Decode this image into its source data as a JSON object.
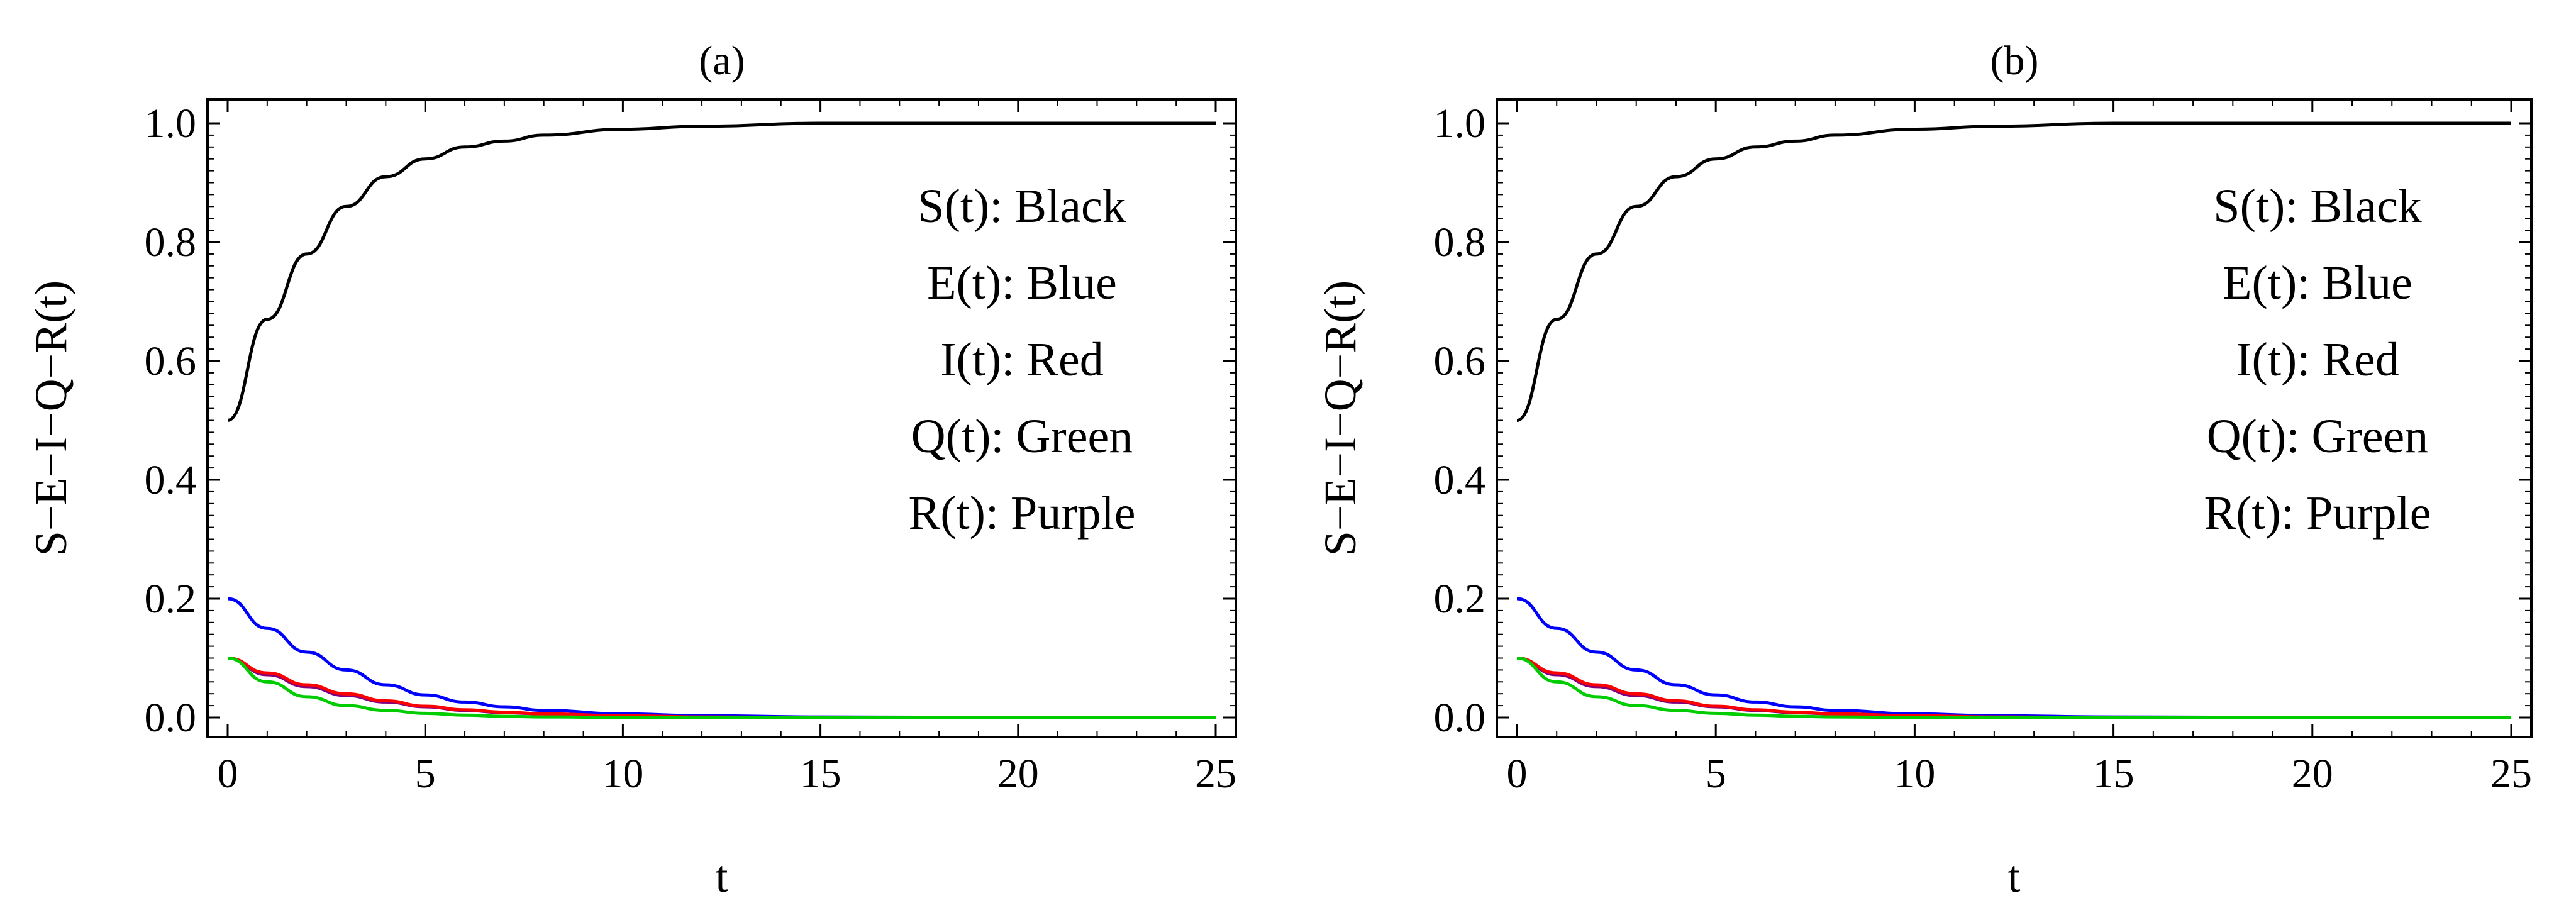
{
  "chart_data": [
    {
      "type": "line",
      "title": "(a)",
      "xlabel": "t",
      "ylabel": "S−E−I−Q−R(t)",
      "xlim": [
        0,
        25
      ],
      "ylim": [
        0,
        1.0
      ],
      "xticks": [
        "0",
        "5",
        "10",
        "15",
        "20",
        "25"
      ],
      "yticks": [
        "0.0",
        "0.2",
        "0.4",
        "0.6",
        "0.8",
        "1.0"
      ],
      "x": [
        0,
        1,
        2,
        3,
        4,
        5,
        6,
        7,
        8,
        10,
        12,
        15,
        20,
        25
      ],
      "series": [
        {
          "name": "S(t)",
          "color": "#000000",
          "values": [
            0.5,
            0.67,
            0.78,
            0.86,
            0.91,
            0.94,
            0.96,
            0.97,
            0.98,
            0.99,
            0.995,
            1.0,
            1.0,
            1.0
          ]
        },
        {
          "name": "E(t)",
          "color": "#0000ff",
          "values": [
            0.2,
            0.15,
            0.11,
            0.08,
            0.055,
            0.038,
            0.026,
            0.018,
            0.012,
            0.006,
            0.003,
            0.001,
            0.0,
            0.0
          ]
        },
        {
          "name": "I(t)",
          "color": "#ff0000",
          "values": [
            0.1,
            0.075,
            0.055,
            0.04,
            0.028,
            0.019,
            0.013,
            0.009,
            0.006,
            0.003,
            0.001,
            0.0,
            0.0,
            0.0
          ]
        },
        {
          "name": "Q(t)",
          "color": "#00cc00",
          "values": [
            0.1,
            0.06,
            0.035,
            0.02,
            0.012,
            0.007,
            0.004,
            0.002,
            0.001,
            0.0,
            0.0,
            0.0,
            0.0,
            0.0
          ]
        },
        {
          "name": "R(t)",
          "color": "#800080",
          "values": [
            0.1,
            0.072,
            0.052,
            0.037,
            0.026,
            0.018,
            0.012,
            0.008,
            0.006,
            0.003,
            0.001,
            0.0,
            0.0,
            0.0
          ]
        }
      ],
      "legend": {
        "placement": "top-right",
        "entries": [
          "S(t): Black",
          "E(t): Blue",
          "I(t): Red",
          "Q(t): Green",
          "R(t): Purple"
        ]
      }
    },
    {
      "type": "line",
      "title": "(b)",
      "xlabel": "t",
      "ylabel": "S−E−I−Q−R(t)",
      "xlim": [
        0,
        25
      ],
      "ylim": [
        0,
        1.0
      ],
      "xticks": [
        "0",
        "5",
        "10",
        "15",
        "20",
        "25"
      ],
      "yticks": [
        "0.0",
        "0.2",
        "0.4",
        "0.6",
        "0.8",
        "1.0"
      ],
      "x": [
        0,
        1,
        2,
        3,
        4,
        5,
        6,
        7,
        8,
        10,
        12,
        15,
        20,
        25
      ],
      "series": [
        {
          "name": "S(t)",
          "color": "#000000",
          "values": [
            0.5,
            0.67,
            0.78,
            0.86,
            0.91,
            0.94,
            0.96,
            0.97,
            0.98,
            0.99,
            0.995,
            1.0,
            1.0,
            1.0
          ]
        },
        {
          "name": "E(t)",
          "color": "#0000ff",
          "values": [
            0.2,
            0.15,
            0.11,
            0.08,
            0.055,
            0.038,
            0.026,
            0.018,
            0.012,
            0.006,
            0.003,
            0.001,
            0.0,
            0.0
          ]
        },
        {
          "name": "I(t)",
          "color": "#ff0000",
          "values": [
            0.1,
            0.075,
            0.055,
            0.04,
            0.028,
            0.019,
            0.013,
            0.009,
            0.006,
            0.003,
            0.001,
            0.0,
            0.0,
            0.0
          ]
        },
        {
          "name": "Q(t)",
          "color": "#00cc00",
          "values": [
            0.1,
            0.06,
            0.035,
            0.02,
            0.012,
            0.007,
            0.004,
            0.002,
            0.001,
            0.0,
            0.0,
            0.0,
            0.0,
            0.0
          ]
        },
        {
          "name": "R(t)",
          "color": "#800080",
          "values": [
            0.1,
            0.072,
            0.052,
            0.037,
            0.026,
            0.018,
            0.012,
            0.008,
            0.006,
            0.003,
            0.001,
            0.0,
            0.0,
            0.0
          ]
        }
      ],
      "legend": {
        "placement": "top-right",
        "entries": [
          "S(t): Black",
          "E(t): Blue",
          "I(t): Red",
          "Q(t): Green",
          "R(t): Purple"
        ]
      }
    }
  ]
}
